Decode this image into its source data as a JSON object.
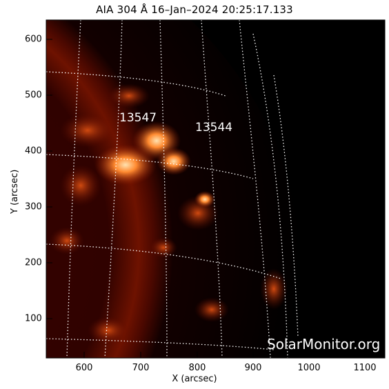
{
  "title": "AIA 304 Å 16–Jan–2024 20:25:17.133",
  "axes": {
    "xlabel": "X (arcsec)",
    "ylabel": "Y (arcsec)",
    "x_ticks": [
      "600",
      "700",
      "800",
      "900",
      "1000",
      "1100"
    ],
    "y_ticks": [
      "600",
      "500",
      "400",
      "300",
      "200",
      "100"
    ]
  },
  "regions": [
    {
      "number": "13547"
    },
    {
      "number": "13544"
    }
  ],
  "watermark": "SolarMonitor.org",
  "colors": {
    "background": "#000000",
    "sun_dark": "#3a0000",
    "sun_mid": "#a02000",
    "sun_bright": "#ff8a30",
    "grid": "#ffffff"
  }
}
